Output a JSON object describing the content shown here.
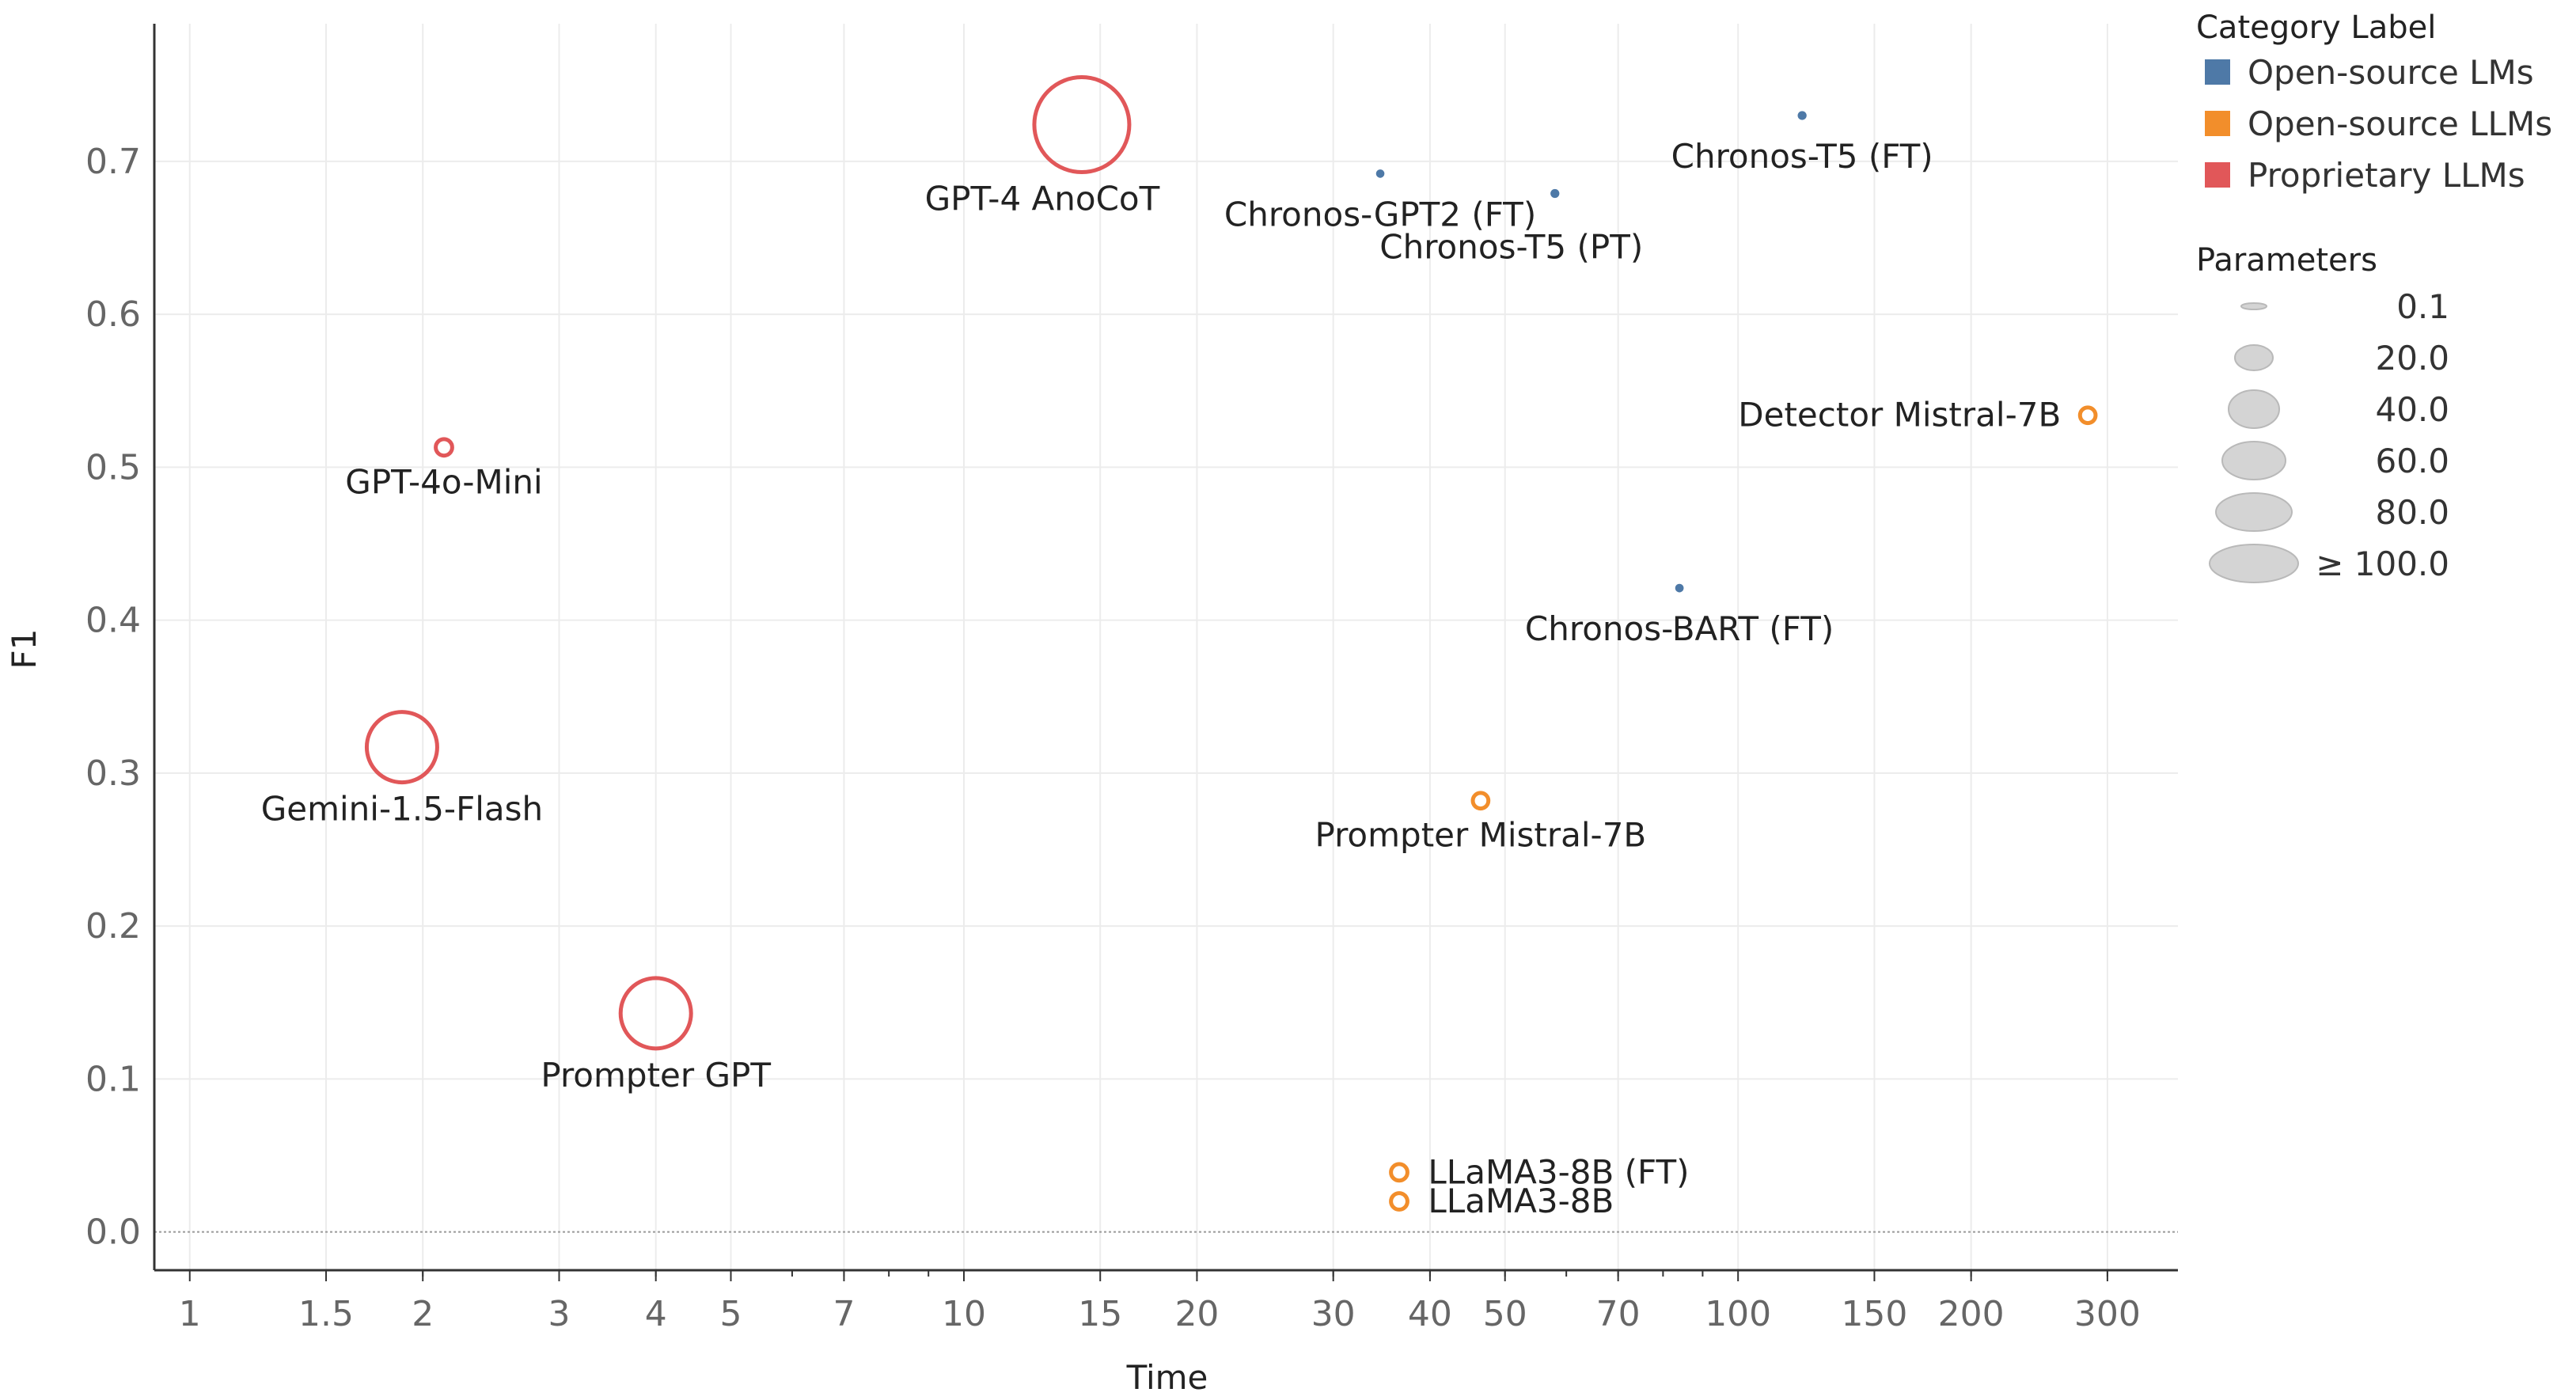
{
  "chart_data": {
    "type": "scatter",
    "subtype": "bubble",
    "xlabel": "Time",
    "ylabel": "F1",
    "x_scale": "log",
    "xlim": [
      0.9,
      370
    ],
    "ylim": [
      -0.025,
      0.79
    ],
    "x_ticks": [
      1,
      1.5,
      2,
      3,
      4,
      5,
      7,
      10,
      15,
      20,
      30,
      40,
      50,
      70,
      100,
      150,
      200,
      300
    ],
    "x_tick_labels": [
      "1",
      "1.5",
      "2",
      "3",
      "4",
      "5",
      "7",
      "10",
      "15",
      "20",
      "30",
      "40",
      "50",
      "70",
      "100",
      "150",
      "200",
      "300"
    ],
    "y_ticks": [
      0.0,
      0.1,
      0.2,
      0.3,
      0.4,
      0.5,
      0.6,
      0.7
    ],
    "y_tick_labels": [
      "0.0",
      "0.1",
      "0.2",
      "0.3",
      "0.4",
      "0.5",
      "0.6",
      "0.7"
    ],
    "categories": [
      {
        "name": "Open-source LMs",
        "color": "#4e79a7"
      },
      {
        "name": "Open-source LLMs",
        "color": "#f28e2b"
      },
      {
        "name": "Proprietary LLMs",
        "color": "#e15759"
      }
    ],
    "points": [
      {
        "label": "GPT-4 AnoCoT",
        "x": 14.2,
        "y": 0.724,
        "params": 100,
        "category": "Proprietary LLMs",
        "label_pos": "below-left"
      },
      {
        "label": "Chronos-GPT2 (FT)",
        "x": 34.5,
        "y": 0.692,
        "params": 0.1,
        "category": "Open-source LMs",
        "label_pos": "below"
      },
      {
        "label": "Chronos-T5 (PT)",
        "x": 58,
        "y": 0.679,
        "params": 0.7,
        "category": "Open-source LMs",
        "label_pos": "below-right"
      },
      {
        "label": "Chronos-T5 (FT)",
        "x": 121,
        "y": 0.73,
        "params": 0.7,
        "category": "Open-source LMs",
        "label_pos": "below"
      },
      {
        "label": "GPT-4o-Mini",
        "x": 2.13,
        "y": 0.513,
        "params": 8,
        "category": "Proprietary LLMs",
        "label_pos": "below"
      },
      {
        "label": "Detector Mistral-7B",
        "x": 283,
        "y": 0.534,
        "params": 7,
        "category": "Open-source LLMs",
        "label_pos": "left"
      },
      {
        "label": "Chronos-BART (FT)",
        "x": 84,
        "y": 0.421,
        "params": 0.2,
        "category": "Open-source LMs",
        "label_pos": "below"
      },
      {
        "label": "Gemini-1.5-Flash",
        "x": 1.88,
        "y": 0.317,
        "params": 70,
        "category": "Proprietary LLMs",
        "label_pos": "below"
      },
      {
        "label": "Prompter Mistral-7B",
        "x": 46.5,
        "y": 0.282,
        "params": 7,
        "category": "Open-source LLMs",
        "label_pos": "below"
      },
      {
        "label": "Prompter GPT",
        "x": 4.0,
        "y": 0.143,
        "params": 70,
        "category": "Proprietary LLMs",
        "label_pos": "below"
      },
      {
        "label": "LLaMA3-8B (FT)",
        "x": 36.5,
        "y": 0.039,
        "params": 8,
        "category": "Open-source LLMs",
        "label_pos": "right"
      },
      {
        "label": "LLaMA3-8B",
        "x": 36.5,
        "y": 0.02,
        "params": 8,
        "category": "Open-source LLMs",
        "label_pos": "right"
      }
    ],
    "legend": {
      "color_title": "Category Label",
      "size_title": "Parameters",
      "size_values": [
        0.1,
        20.0,
        40.0,
        60.0,
        80.0,
        100.0
      ],
      "size_labels": [
        "0.1",
        "20.0",
        "40.0",
        "60.0",
        "80.0",
        "≥ 100.0"
      ],
      "placement": "right"
    }
  }
}
